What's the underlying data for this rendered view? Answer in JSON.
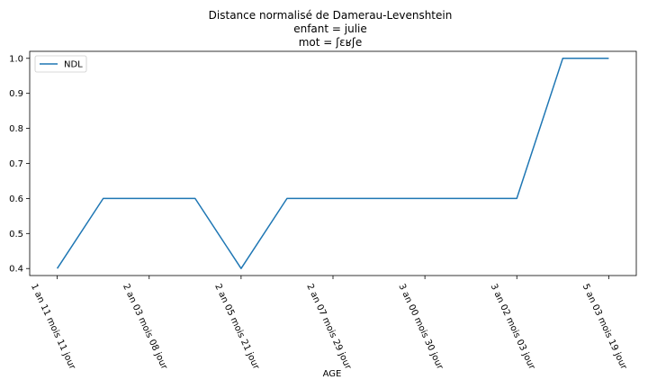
{
  "chart_data": {
    "type": "line",
    "title_lines": [
      "Distance normalisé de Damerau-Levenshtein",
      "enfant = julie",
      "mot = ʃɛʁʃe"
    ],
    "xlabel": "AGE",
    "ylabel": "",
    "x_tick_labels": [
      "1 an 11 mois 11 jour",
      "2 an 03 mois 08 jour",
      "2 an 05 mois 21 jour",
      "2 an 07 mois 29 jour",
      "3 an 00 mois 30 jour",
      "3 an 02 mois 03 jour",
      "5 an 03 mois 19 jour"
    ],
    "x_tick_positions": [
      0,
      2,
      4,
      6,
      8,
      10,
      12
    ],
    "y_ticks": [
      0.4,
      0.5,
      0.6,
      0.7,
      0.8,
      0.9,
      1.0
    ],
    "y_tick_labels": [
      "0.4",
      "0.5",
      "0.6",
      "0.7",
      "0.8",
      "0.9",
      "1.0"
    ],
    "ylim": [
      0.38,
      1.02
    ],
    "xlim": [
      -0.6,
      12.6
    ],
    "series": [
      {
        "name": "NDL",
        "color": "#1f77b4",
        "x": [
          0,
          1,
          2,
          3,
          4,
          5,
          6,
          7,
          8,
          9,
          10,
          11,
          12
        ],
        "values": [
          0.4,
          0.6,
          0.6,
          0.6,
          0.4,
          0.6,
          0.6,
          0.6,
          0.6,
          0.6,
          0.6,
          1.0,
          1.0
        ]
      }
    ],
    "legend": {
      "placement": "top-left"
    },
    "grid": false
  }
}
